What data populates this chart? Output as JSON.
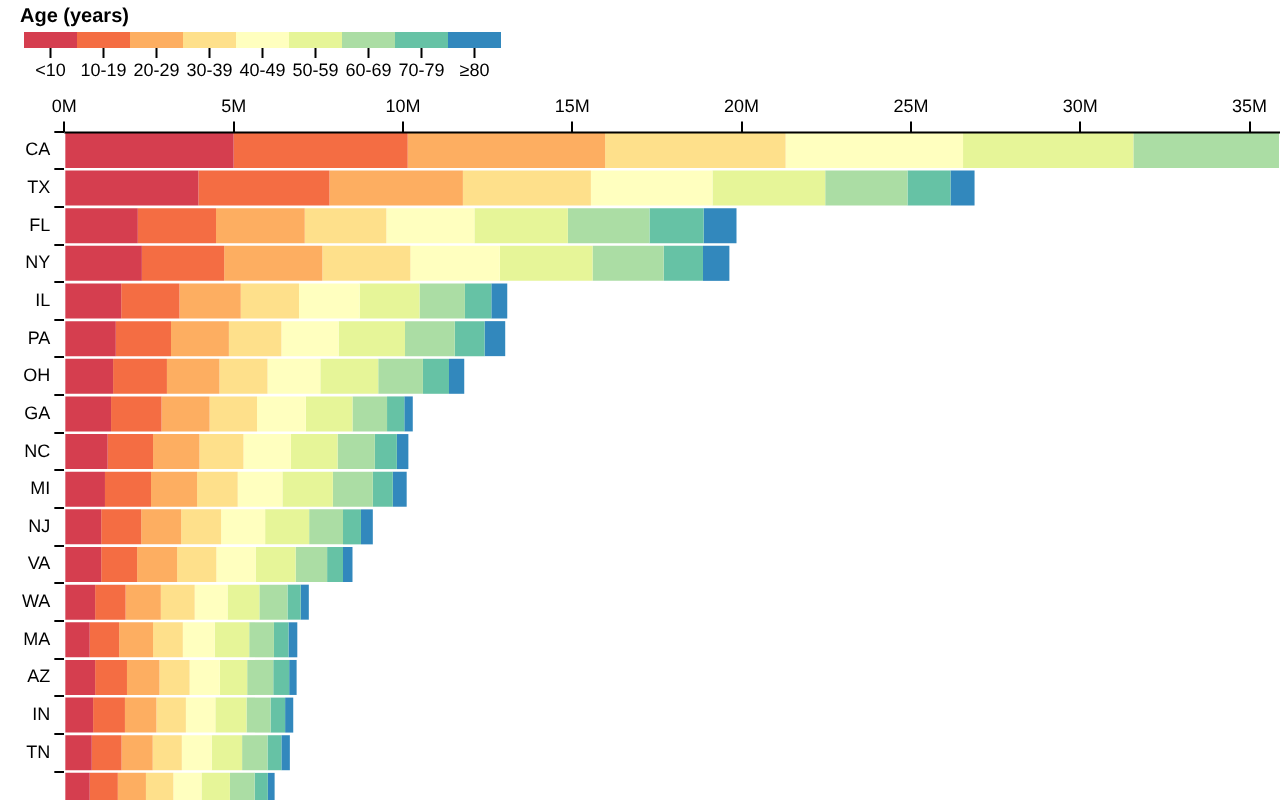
{
  "chart_data": {
    "type": "bar",
    "orientation": "horizontal",
    "stacked": true,
    "legend": "top left",
    "legend_title": "Age (years)",
    "grid": false,
    "categories": [
      "CA",
      "TX",
      "FL",
      "NY",
      "IL",
      "PA",
      "OH",
      "GA",
      "NC",
      "MI",
      "NJ",
      "VA",
      "WA",
      "MA",
      "AZ",
      "IN",
      "TN",
      null
    ],
    "xlim": [
      0,
      35.9
    ],
    "xticks": [
      {
        "value": 0,
        "label": "0M"
      },
      {
        "value": 5,
        "label": "5M"
      },
      {
        "value": 10,
        "label": "10M"
      },
      {
        "value": 15,
        "label": "15M"
      },
      {
        "value": 20,
        "label": "20M"
      },
      {
        "value": 25,
        "label": "25M"
      },
      {
        "value": 30,
        "label": "30M"
      },
      {
        "value": 35,
        "label": "35M"
      }
    ],
    "series": [
      {
        "name": "<10",
        "color": "#d53e4f",
        "values": [
          5.0,
          3.96,
          2.17,
          2.29,
          1.68,
          1.52,
          1.44,
          1.38,
          1.28,
          1.2,
          1.09,
          1.09,
          0.91,
          0.75,
          0.91,
          0.85,
          0.81,
          0.75
        ]
      },
      {
        "name": "10-19",
        "color": "#f46d43",
        "values": [
          5.14,
          3.87,
          2.31,
          2.43,
          1.72,
          1.63,
          1.59,
          1.49,
          1.34,
          1.36,
          1.18,
          1.06,
          0.9,
          0.87,
          0.94,
          0.94,
          0.88,
          0.83
        ]
      },
      {
        "name": "20-29",
        "color": "#fdae61",
        "values": [
          5.83,
          3.94,
          2.62,
          2.9,
          1.81,
          1.71,
          1.55,
          1.42,
          1.37,
          1.36,
          1.18,
          1.18,
          1.04,
          1.0,
          0.96,
          0.93,
          0.92,
          0.83
        ]
      },
      {
        "name": "30-39",
        "color": "#fee08b",
        "values": [
          5.33,
          3.78,
          2.41,
          2.6,
          1.72,
          1.55,
          1.42,
          1.4,
          1.3,
          1.2,
          1.18,
          1.16,
          1.0,
          0.88,
          0.89,
          0.87,
          0.86,
          0.81
        ]
      },
      {
        "name": "40-49",
        "color": "#ffffbf",
        "values": [
          5.24,
          3.59,
          2.6,
          2.64,
          1.79,
          1.69,
          1.56,
          1.44,
          1.4,
          1.32,
          1.3,
          1.16,
          0.97,
          0.94,
          0.89,
          0.87,
          0.88,
          0.83
        ]
      },
      {
        "name": "50-59",
        "color": "#e6f598",
        "values": [
          5.03,
          3.33,
          2.76,
          2.74,
          1.77,
          1.96,
          1.71,
          1.38,
          1.38,
          1.49,
          1.3,
          1.18,
          0.94,
          1.02,
          0.81,
          0.92,
          0.9,
          0.84
        ]
      },
      {
        "name": "60-69",
        "color": "#abdda4",
        "values": [
          4.3,
          2.43,
          2.41,
          2.1,
          1.34,
          1.47,
          1.32,
          1.02,
          1.1,
          1.18,
          1.0,
          0.93,
          0.83,
          0.73,
          0.77,
          0.71,
          0.75,
          0.73
        ]
      },
      {
        "name": "70-79",
        "color": "#66c2a5",
        "values": [
          null,
          1.27,
          1.6,
          1.16,
          0.78,
          0.88,
          0.77,
          0.51,
          0.65,
          0.59,
          0.53,
          0.47,
          0.39,
          0.43,
          0.47,
          0.43,
          0.41,
          0.39
        ]
      },
      {
        "name": "≥80",
        "color": "#3288bd",
        "values": [
          null,
          0.71,
          0.97,
          0.78,
          0.47,
          0.61,
          0.45,
          0.25,
          0.34,
          0.41,
          0.35,
          0.28,
          0.24,
          0.26,
          0.22,
          0.24,
          0.25,
          0.2
        ]
      }
    ]
  }
}
